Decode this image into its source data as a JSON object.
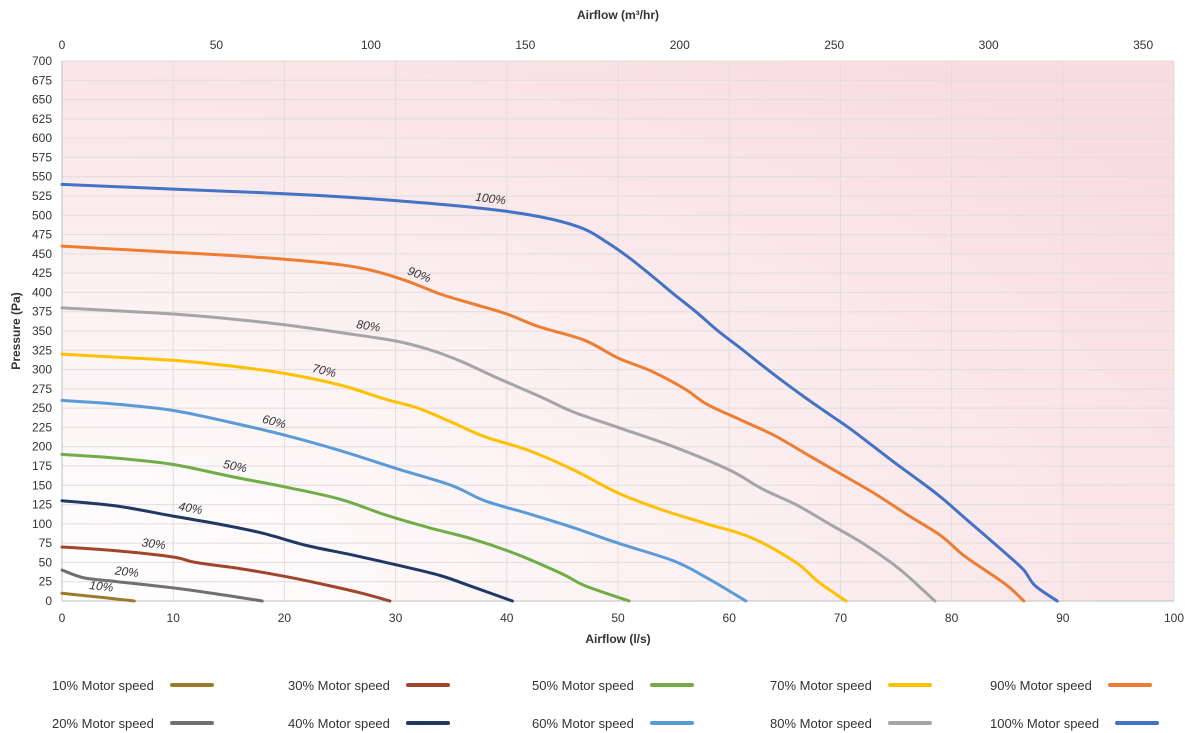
{
  "chart_data": {
    "type": "line",
    "title": "",
    "xlabel": "Airflow (l/s)",
    "x2label": "Airflow (m³/hr)",
    "ylabel": "Pressure (Pa)",
    "xlim": [
      0,
      100
    ],
    "x2lim": [
      0,
      360
    ],
    "ylim": [
      0,
      700
    ],
    "xticks": [
      "0",
      "10",
      "20",
      "30",
      "40",
      "50",
      "60",
      "70",
      "80",
      "90",
      "100"
    ],
    "x2ticks": [
      "0",
      "50",
      "100",
      "150",
      "200",
      "250",
      "300",
      "350"
    ],
    "yticks": [
      "0",
      "25",
      "50",
      "75",
      "100",
      "125",
      "150",
      "175",
      "200",
      "225",
      "250",
      "275",
      "300",
      "325",
      "350",
      "375",
      "400",
      "425",
      "450",
      "475",
      "500",
      "525",
      "550",
      "575",
      "600",
      "625",
      "650",
      "675",
      "700"
    ],
    "grid": true,
    "legend_position": "bottom",
    "series": [
      {
        "name": "10% Motor speed",
        "label": "10%",
        "color": "#9c7a2c",
        "points": [
          [
            0,
            10
          ],
          [
            2,
            7
          ],
          [
            4,
            4
          ],
          [
            6.5,
            0
          ]
        ]
      },
      {
        "name": "20% Motor speed",
        "label": "20%",
        "color": "#707070",
        "points": [
          [
            0,
            40
          ],
          [
            2,
            30
          ],
          [
            5,
            25
          ],
          [
            10,
            17
          ],
          [
            14,
            9
          ],
          [
            18,
            0
          ]
        ]
      },
      {
        "name": "30% Motor speed",
        "label": "30%",
        "color": "#a0442a",
        "points": [
          [
            0,
            70
          ],
          [
            5,
            65
          ],
          [
            10,
            57
          ],
          [
            12,
            50
          ],
          [
            16,
            42
          ],
          [
            20,
            32
          ],
          [
            24,
            20
          ],
          [
            27,
            10
          ],
          [
            29.5,
            0
          ]
        ]
      },
      {
        "name": "40% Motor speed",
        "label": "40%",
        "color": "#1f3864",
        "points": [
          [
            0,
            130
          ],
          [
            5,
            123
          ],
          [
            10,
            110
          ],
          [
            14,
            100
          ],
          [
            18,
            88
          ],
          [
            22,
            72
          ],
          [
            26,
            60
          ],
          [
            30,
            47
          ],
          [
            34,
            33
          ],
          [
            37,
            18
          ],
          [
            40.5,
            0
          ]
        ]
      },
      {
        "name": "50% Motor speed",
        "label": "50%",
        "color": "#70ad47",
        "points": [
          [
            0,
            190
          ],
          [
            5,
            185
          ],
          [
            10,
            177
          ],
          [
            15,
            162
          ],
          [
            20,
            148
          ],
          [
            25,
            132
          ],
          [
            29,
            112
          ],
          [
            33,
            95
          ],
          [
            37,
            80
          ],
          [
            41,
            60
          ],
          [
            45,
            35
          ],
          [
            47,
            20
          ],
          [
            51,
            0
          ]
        ]
      },
      {
        "name": "60% Motor speed",
        "label": "60%",
        "color": "#5b9bd5",
        "points": [
          [
            0,
            260
          ],
          [
            5,
            255
          ],
          [
            10,
            247
          ],
          [
            15,
            232
          ],
          [
            20,
            215
          ],
          [
            25,
            195
          ],
          [
            30,
            172
          ],
          [
            35,
            150
          ],
          [
            38,
            130
          ],
          [
            42,
            113
          ],
          [
            46,
            95
          ],
          [
            50,
            75
          ],
          [
            55,
            52
          ],
          [
            58,
            30
          ],
          [
            61.5,
            0
          ]
        ]
      },
      {
        "name": "70% Motor speed",
        "label": "70%",
        "color": "#ffc000",
        "points": [
          [
            0,
            320
          ],
          [
            5,
            316
          ],
          [
            10,
            312
          ],
          [
            15,
            305
          ],
          [
            20,
            295
          ],
          [
            25,
            280
          ],
          [
            29,
            262
          ],
          [
            32,
            250
          ],
          [
            35,
            232
          ],
          [
            38,
            213
          ],
          [
            42,
            195
          ],
          [
            46,
            170
          ],
          [
            50,
            140
          ],
          [
            54,
            118
          ],
          [
            58,
            100
          ],
          [
            62,
            82
          ],
          [
            66,
            50
          ],
          [
            68,
            25
          ],
          [
            70.5,
            0
          ]
        ]
      },
      {
        "name": "80% Motor speed",
        "label": "80%",
        "color": "#a5a5a5",
        "points": [
          [
            0,
            380
          ],
          [
            5,
            376
          ],
          [
            10,
            372
          ],
          [
            15,
            366
          ],
          [
            20,
            358
          ],
          [
            25,
            348
          ],
          [
            30,
            337
          ],
          [
            33,
            326
          ],
          [
            36,
            310
          ],
          [
            39,
            290
          ],
          [
            43,
            265
          ],
          [
            46,
            245
          ],
          [
            50,
            225
          ],
          [
            55,
            200
          ],
          [
            60,
            170
          ],
          [
            63,
            145
          ],
          [
            66,
            125
          ],
          [
            69,
            100
          ],
          [
            72,
            75
          ],
          [
            75,
            45
          ],
          [
            77,
            20
          ],
          [
            78.5,
            0
          ]
        ]
      },
      {
        "name": "90% Motor speed",
        "label": "90%",
        "color": "#ed7d31",
        "points": [
          [
            0,
            460
          ],
          [
            5,
            456
          ],
          [
            10,
            452
          ],
          [
            15,
            448
          ],
          [
            20,
            443
          ],
          [
            25,
            436
          ],
          [
            28,
            428
          ],
          [
            31,
            415
          ],
          [
            34,
            398
          ],
          [
            37,
            385
          ],
          [
            40,
            372
          ],
          [
            43,
            355
          ],
          [
            47,
            338
          ],
          [
            50,
            315
          ],
          [
            53,
            298
          ],
          [
            56,
            275
          ],
          [
            58,
            255
          ],
          [
            61,
            235
          ],
          [
            64,
            215
          ],
          [
            67,
            190
          ],
          [
            70,
            165
          ],
          [
            73,
            140
          ],
          [
            76,
            112
          ],
          [
            79,
            85
          ],
          [
            81,
            60
          ],
          [
            83,
            40
          ],
          [
            85,
            20
          ],
          [
            86.5,
            0
          ]
        ]
      },
      {
        "name": "100% Motor speed",
        "label": "100%",
        "color": "#4472c4",
        "points": [
          [
            0,
            540
          ],
          [
            5,
            537
          ],
          [
            10,
            534
          ],
          [
            15,
            531
          ],
          [
            20,
            528
          ],
          [
            25,
            524
          ],
          [
            30,
            519
          ],
          [
            35,
            513
          ],
          [
            40,
            505
          ],
          [
            44,
            495
          ],
          [
            47,
            482
          ],
          [
            49,
            465
          ],
          [
            51,
            445
          ],
          [
            53,
            422
          ],
          [
            55,
            398
          ],
          [
            57,
            375
          ],
          [
            59,
            350
          ],
          [
            61,
            328
          ],
          [
            63,
            305
          ],
          [
            65,
            283
          ],
          [
            67,
            262
          ],
          [
            69,
            242
          ],
          [
            71,
            222
          ],
          [
            73,
            200
          ],
          [
            75,
            178
          ],
          [
            77,
            157
          ],
          [
            79,
            135
          ],
          [
            81,
            110
          ],
          [
            83,
            85
          ],
          [
            85,
            60
          ],
          [
            86.5,
            40
          ],
          [
            87.5,
            20
          ],
          [
            89.5,
            0
          ]
        ]
      }
    ]
  }
}
